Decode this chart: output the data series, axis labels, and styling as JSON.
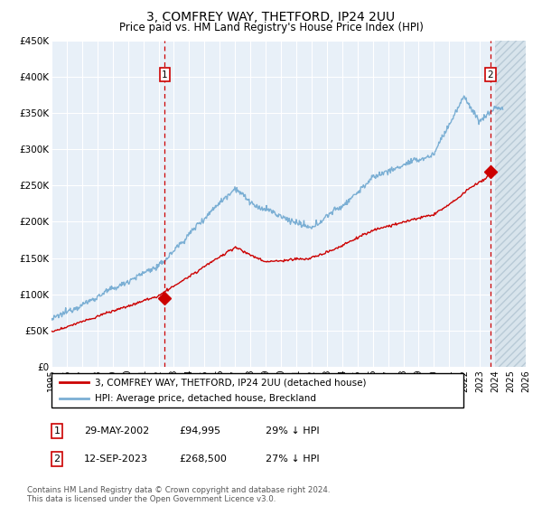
{
  "title": "3, COMFREY WAY, THETFORD, IP24 2UU",
  "subtitle": "Price paid vs. HM Land Registry's House Price Index (HPI)",
  "legend_line1": "3, COMFREY WAY, THETFORD, IP24 2UU (detached house)",
  "legend_line2": "HPI: Average price, detached house, Breckland",
  "annotation1": {
    "label": "1",
    "x_val": 2002.41,
    "y_val": 94995,
    "text_date": "29-MAY-2002",
    "text_price": "£94,995",
    "text_hpi": "29% ↓ HPI"
  },
  "annotation2": {
    "label": "2",
    "x_val": 2023.7,
    "y_val": 268500,
    "text_date": "12-SEP-2023",
    "text_price": "£268,500",
    "text_hpi": "27% ↓ HPI"
  },
  "xmin": 1995.0,
  "xmax": 2026.0,
  "ymin": 0,
  "ymax": 450000,
  "yticks": [
    0,
    50000,
    100000,
    150000,
    200000,
    250000,
    300000,
    350000,
    400000,
    450000
  ],
  "ytick_labels": [
    "£0",
    "£50K",
    "£100K",
    "£150K",
    "£200K",
    "£250K",
    "£300K",
    "£350K",
    "£400K",
    "£450K"
  ],
  "hpi_color": "#7bafd4",
  "price_color": "#cc0000",
  "bg_color": "#e8f0f8",
  "grid_color": "#ffffff",
  "footnote": "Contains HM Land Registry data © Crown copyright and database right 2024.\nThis data is licensed under the Open Government Licence v3.0.",
  "xtick_years": [
    1995,
    1996,
    1997,
    1998,
    1999,
    2000,
    2001,
    2002,
    2003,
    2004,
    2005,
    2006,
    2007,
    2008,
    2009,
    2010,
    2011,
    2012,
    2013,
    2014,
    2015,
    2016,
    2017,
    2018,
    2019,
    2020,
    2021,
    2022,
    2023,
    2024,
    2025,
    2026
  ]
}
